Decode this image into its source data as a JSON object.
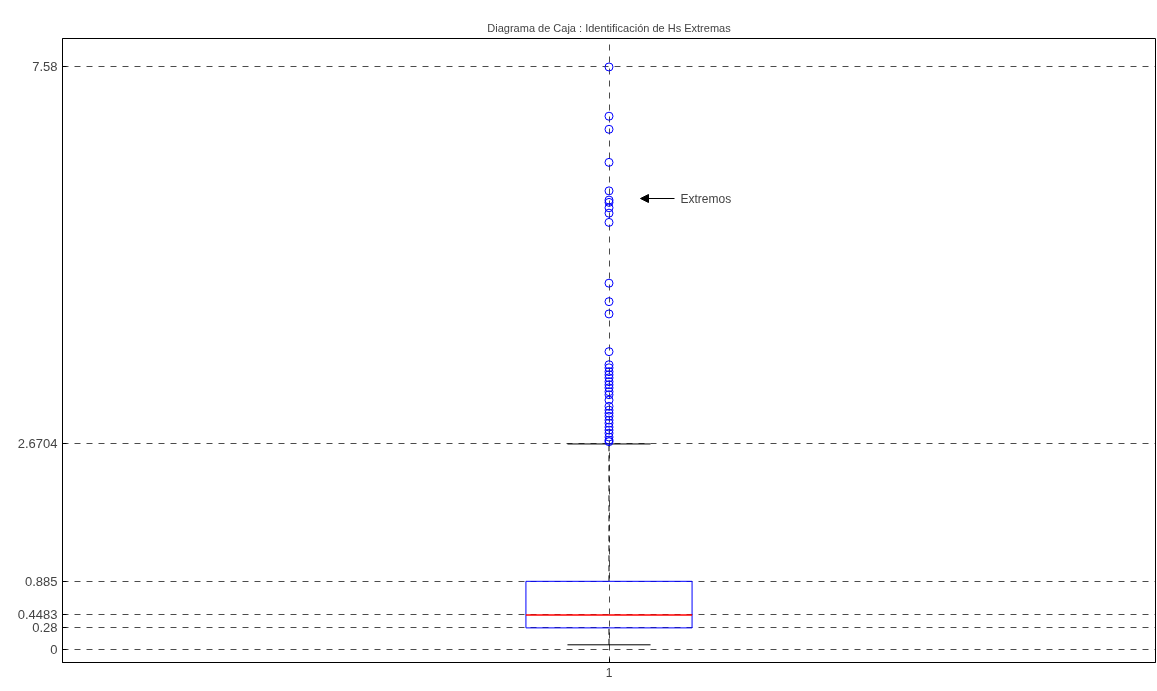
{
  "chart_data": {
    "type": "box",
    "title": "Diagrama de Caja : Identificación de Hs Extremas",
    "categories": [
      "1"
    ],
    "boxes": [
      {
        "low": 0.06,
        "q1": 0.28,
        "median": 0.4483,
        "q3": 0.885,
        "high": 2.6704,
        "outliers": [
          7.57,
          6.93,
          6.76,
          6.33,
          5.96,
          5.84,
          5.81,
          5.74,
          5.67,
          5.55,
          4.76,
          4.52,
          4.36,
          3.87,
          3.7,
          3.66,
          3.61,
          3.57,
          3.53,
          3.48,
          3.44,
          3.4,
          3.35,
          3.31,
          3.24,
          3.16,
          3.11,
          3.07,
          3.03,
          2.98,
          2.94,
          2.89,
          2.85,
          2.81,
          2.76,
          2.72,
          2.7
        ]
      }
    ],
    "color": "#0000ff",
    "marker": "circle",
    "ylim": [
      -0.17,
      7.94
    ],
    "yticks": [
      0,
      0.28,
      0.4483,
      0.885,
      2.6704,
      7.58
    ],
    "grid": true,
    "annotations": [
      "Extremos"
    ]
  }
}
